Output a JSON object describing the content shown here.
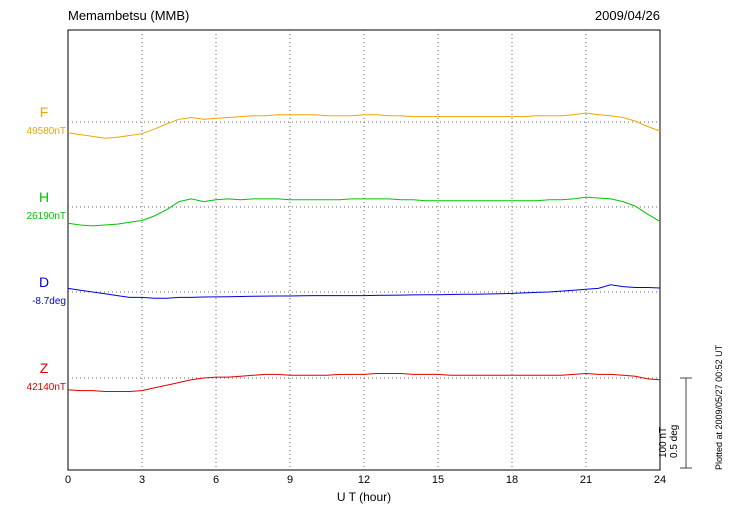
{
  "header": {
    "station": "Memambetsu (MMB)",
    "date": "2009/04/26"
  },
  "traces": [
    {
      "label": "F",
      "value_label": "49580nT",
      "color": "#f0a500"
    },
    {
      "label": "H",
      "value_label": "26190nT",
      "color": "#00c400"
    },
    {
      "label": "D",
      "value_label": "-8.7deg",
      "color": "#0000dd"
    },
    {
      "label": "Z",
      "value_label": "42140nT",
      "color": "#dd0000"
    }
  ],
  "x_axis": {
    "label": "U T (hour)",
    "ticks": [
      "0",
      "3",
      "6",
      "9",
      "12",
      "15",
      "18",
      "21",
      "24"
    ]
  },
  "scale_bar": {
    "labels": [
      "100 nT",
      "0.5 deg"
    ]
  },
  "footer_note": "Plotted at 2009/05/27 00:52 UT",
  "chart_data": {
    "type": "line",
    "title": "Memambetsu (MMB) magnetogram 2009/04/26",
    "xlabel": "U T (hour)",
    "x_range": [
      0,
      24
    ],
    "x_tick_step": 3,
    "grid": "dotted vertical at 3h intervals, dotted horizontal baseline per trace",
    "scale": {
      "nT_per_div": 100,
      "deg_per_div": 0.5
    },
    "x_hours": [
      0,
      0.5,
      1,
      1.5,
      2,
      2.5,
      3,
      3.5,
      4,
      4.5,
      5,
      5.5,
      6,
      6.5,
      7,
      7.5,
      8,
      8.5,
      9,
      9.5,
      10,
      10.5,
      11,
      11.5,
      12,
      12.5,
      13,
      13.5,
      14,
      14.5,
      15,
      15.5,
      16,
      16.5,
      17,
      17.5,
      18,
      18.5,
      19,
      19.5,
      20,
      20.5,
      21,
      21.5,
      22,
      22.5,
      23,
      23.5,
      24
    ],
    "series": [
      {
        "name": "F",
        "unit": "nT",
        "baseline_value": 49580,
        "color": "#f0a500",
        "offsets": [
          -12,
          -14,
          -16,
          -18,
          -17,
          -15,
          -13,
          -8,
          -2,
          3,
          5,
          3,
          4,
          5,
          6,
          7,
          7,
          8,
          8,
          8,
          8,
          7,
          7,
          7,
          8,
          8,
          7,
          7,
          6,
          6,
          6,
          6,
          6,
          6,
          6,
          6,
          6,
          6,
          7,
          7,
          7,
          8,
          10,
          8,
          7,
          5,
          1,
          -5,
          -10
        ]
      },
      {
        "name": "H",
        "unit": "nT",
        "baseline_value": 26190,
        "color": "#00c400",
        "offsets": [
          -18,
          -20,
          -21,
          -20,
          -19,
          -17,
          -15,
          -10,
          -3,
          6,
          9,
          6,
          8,
          9,
          8,
          9,
          9,
          9,
          8,
          8,
          8,
          8,
          8,
          9,
          9,
          9,
          9,
          8,
          8,
          7,
          7,
          7,
          7,
          7,
          7,
          7,
          7,
          7,
          7,
          8,
          8,
          9,
          11,
          10,
          9,
          6,
          1,
          -8,
          -16
        ]
      },
      {
        "name": "D",
        "unit": "deg",
        "baseline_value": -8.7,
        "color": "#0000dd",
        "offsets": [
          0.02,
          0.01,
          0.0,
          -0.01,
          -0.02,
          -0.03,
          -0.03,
          -0.035,
          -0.035,
          -0.03,
          -0.03,
          -0.028,
          -0.027,
          -0.026,
          -0.025,
          -0.024,
          -0.023,
          -0.022,
          -0.022,
          -0.021,
          -0.02,
          -0.02,
          -0.02,
          -0.02,
          -0.02,
          -0.019,
          -0.018,
          -0.017,
          -0.016,
          -0.015,
          -0.015,
          -0.014,
          -0.013,
          -0.012,
          -0.011,
          -0.01,
          -0.008,
          -0.005,
          -0.002,
          0.0,
          0.005,
          0.01,
          0.015,
          0.02,
          0.04,
          0.03,
          0.025,
          0.025,
          0.022
        ]
      },
      {
        "name": "Z",
        "unit": "nT",
        "baseline_value": 42140,
        "color": "#dd0000",
        "offsets": [
          -13,
          -14,
          -14,
          -15,
          -15,
          -15,
          -14,
          -11,
          -8,
          -5,
          -2,
          0,
          1,
          1,
          2,
          3,
          4,
          4,
          3,
          3,
          3,
          3,
          4,
          4,
          4,
          5,
          5,
          5,
          4,
          4,
          4,
          3,
          3,
          3,
          3,
          3,
          3,
          3,
          3,
          3,
          3,
          4,
          5,
          4,
          4,
          3,
          2,
          -1,
          -2
        ]
      }
    ]
  }
}
